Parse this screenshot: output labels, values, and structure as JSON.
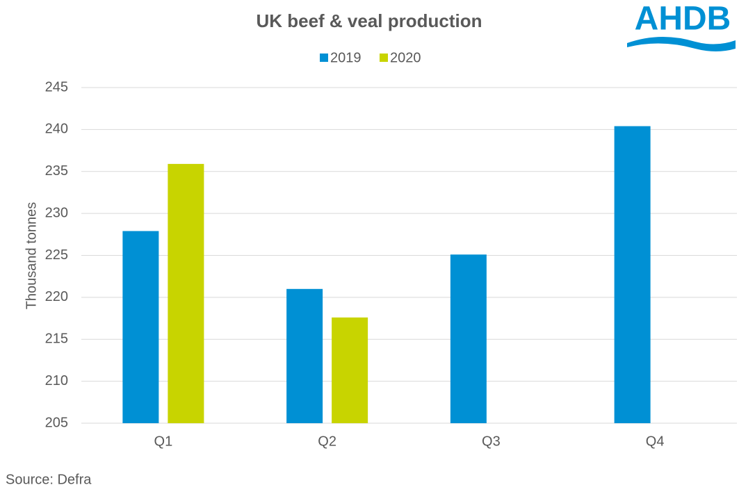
{
  "chart_data": {
    "type": "bar",
    "title": "UK beef & veal production",
    "logo": "AHDB",
    "source": "Source: Defra",
    "y_label": "Thousand tonnes",
    "categories": [
      "Q1",
      "Q2",
      "Q3",
      "Q4"
    ],
    "series": [
      {
        "name": "2019",
        "color": "#0090d4",
        "values": [
          227.9,
          221.0,
          225.1,
          240.4
        ]
      },
      {
        "name": "2020",
        "color": "#c8d400",
        "values": [
          235.9,
          217.6,
          null,
          null
        ]
      }
    ],
    "ylim": [
      205,
      245
    ],
    "yticks": [
      205,
      210,
      215,
      220,
      225,
      230,
      235,
      240,
      245
    ],
    "grid": true
  }
}
